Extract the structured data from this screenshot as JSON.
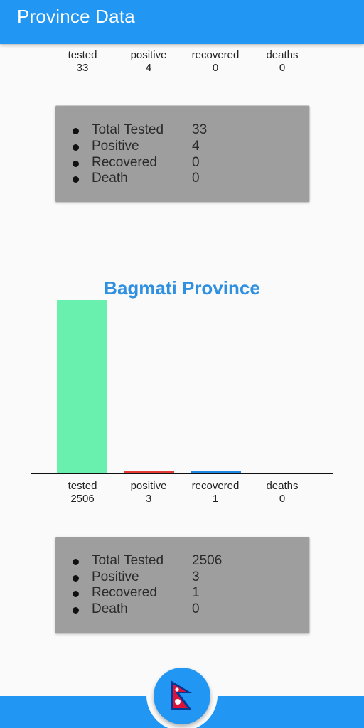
{
  "appbar": {
    "title": "Province Data"
  },
  "top_stats": {
    "labels": [
      "tested",
      "positive",
      "recovered",
      "deaths"
    ],
    "values": [
      "33",
      "4",
      "0",
      "0"
    ]
  },
  "card1": {
    "items": [
      {
        "key": "Total Tested",
        "value": "33"
      },
      {
        "key": "Positive",
        "value": "4"
      },
      {
        "key": "Recovered",
        "value": "0"
      },
      {
        "key": "Death",
        "value": "0"
      }
    ]
  },
  "chart_data": {
    "type": "bar",
    "title": "Bagmati Province",
    "categories": [
      "tested",
      "positive",
      "recovered",
      "deaths"
    ],
    "values": [
      2506,
      3,
      1,
      0
    ],
    "colors": [
      "#69f0ae",
      "#e53935",
      "#1e88e5",
      "#000000"
    ],
    "ylim": [
      0,
      2506
    ],
    "xlabel": "",
    "ylabel": ""
  },
  "bottom_stats": {
    "labels": [
      "tested",
      "positive",
      "recovered",
      "deaths"
    ],
    "values": [
      "2506",
      "3",
      "1",
      "0"
    ]
  },
  "card2": {
    "items": [
      {
        "key": "Total Tested",
        "value": "2506"
      },
      {
        "key": "Positive",
        "value": "3"
      },
      {
        "key": "Recovered",
        "value": "1"
      },
      {
        "key": "Death",
        "value": "0"
      }
    ]
  },
  "fab": {
    "icon": "nepal-flag-icon",
    "flag_red": "#dc143c",
    "flag_blue": "#003893"
  }
}
